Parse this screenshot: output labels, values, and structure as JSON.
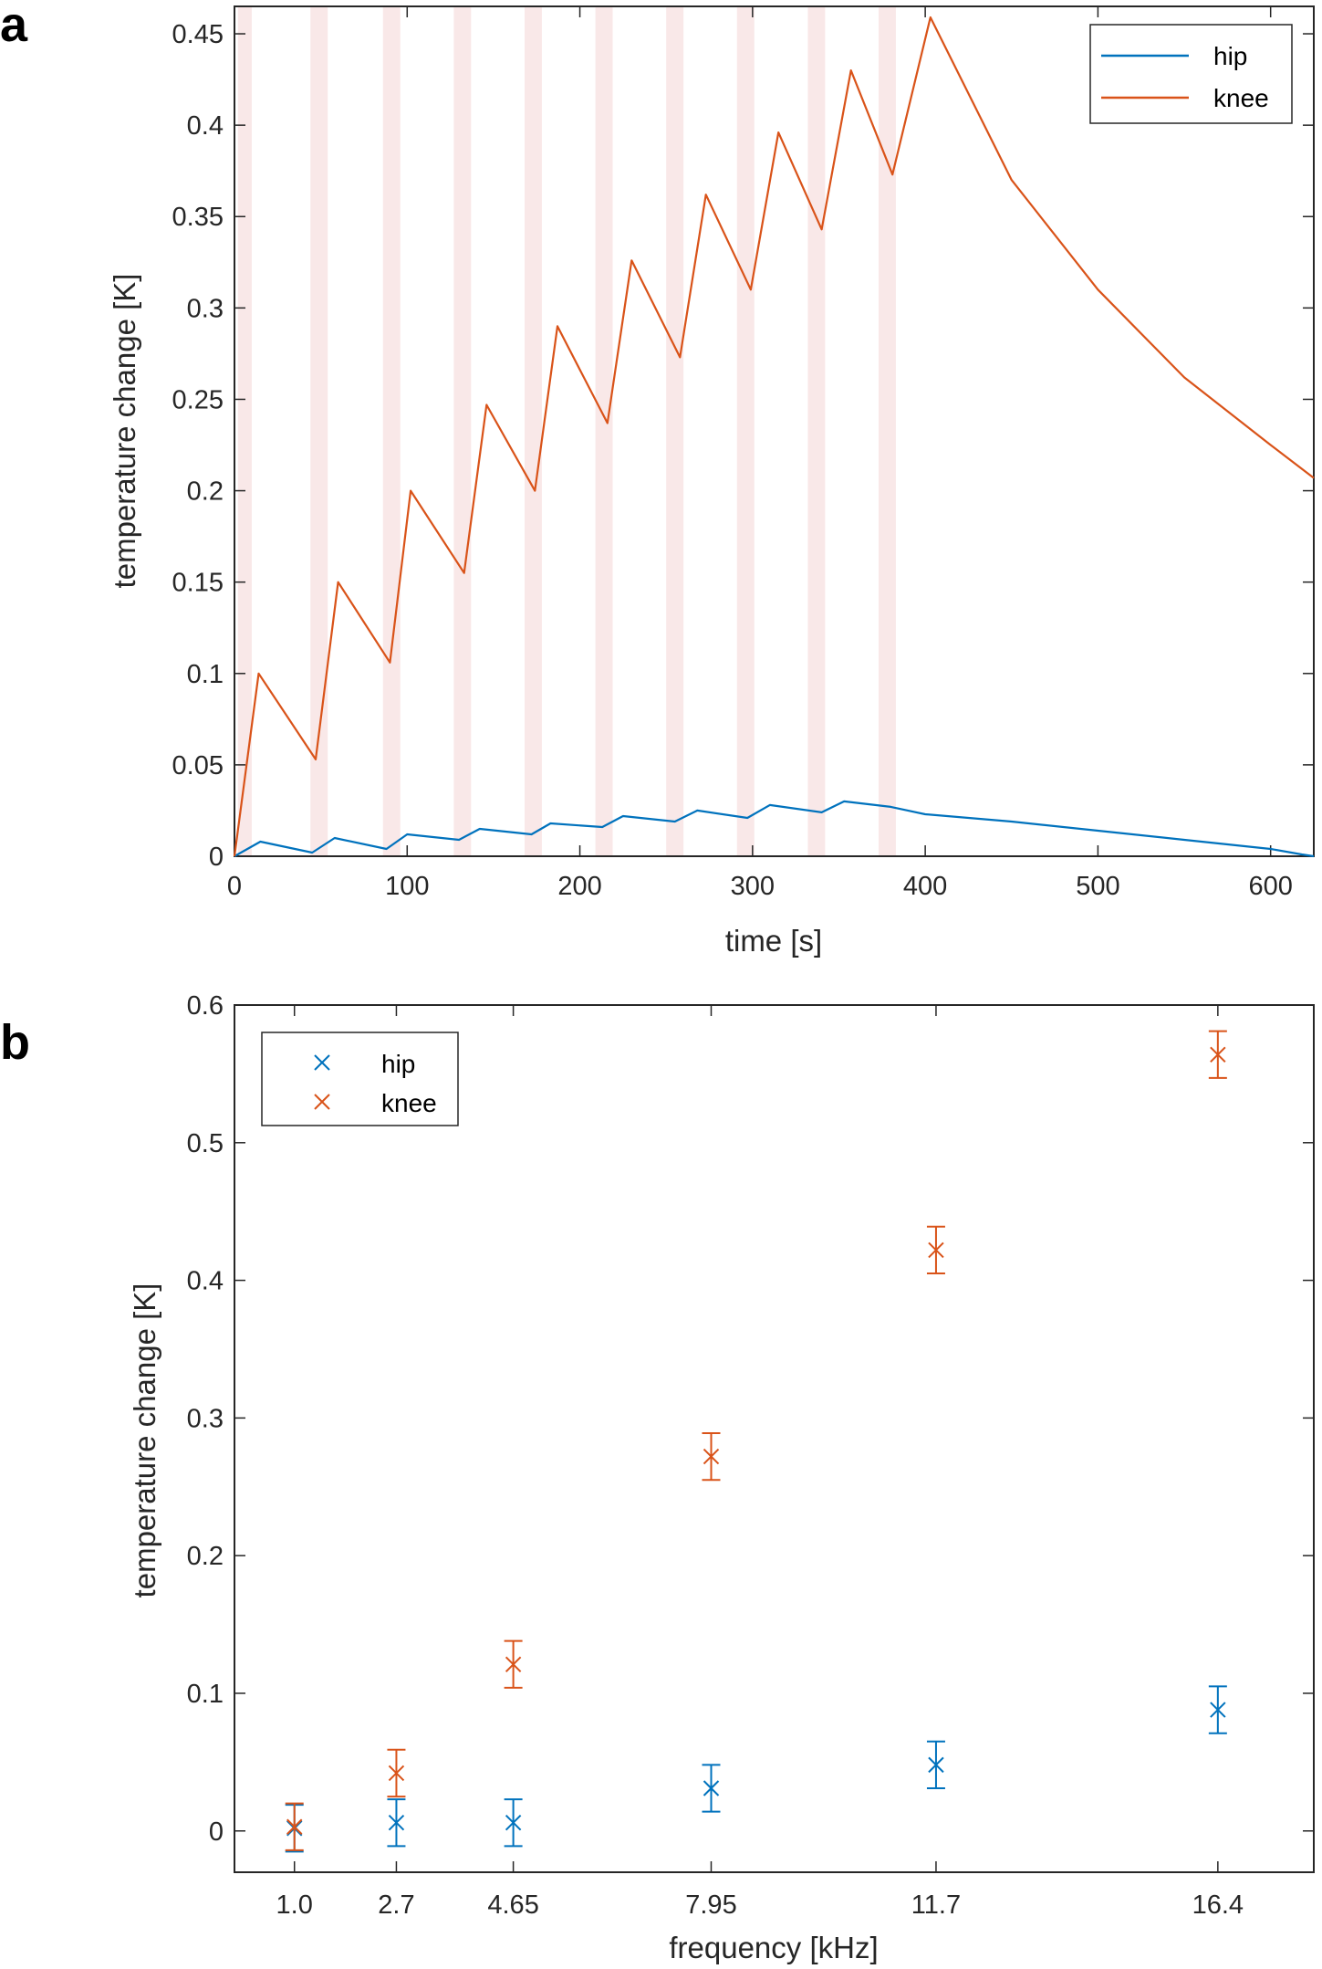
{
  "colors": {
    "hip": "#0072BD",
    "knee": "#D95319",
    "band": "#f9e8e8",
    "axis": "#262626"
  },
  "chart_data": [
    {
      "panel": "a",
      "type": "line",
      "xlabel": "time [s]",
      "ylabel": "temperature change [K]",
      "xlim": [
        0,
        625
      ],
      "ylim": [
        0,
        0.465
      ],
      "xticks": [
        0,
        100,
        200,
        300,
        400,
        500,
        600
      ],
      "yticks": [
        0,
        0.05,
        0.1,
        0.15,
        0.2,
        0.25,
        0.3,
        0.35,
        0.4,
        0.45
      ],
      "ytick_labels": [
        "0",
        "0.05",
        "0.1",
        "0.15",
        "0.2",
        "0.25",
        "0.3",
        "0.35",
        "0.4",
        "0.45"
      ],
      "grid": false,
      "legend": "top-right",
      "stimulus_intervals": [
        [
          2,
          10
        ],
        [
          44,
          54
        ],
        [
          86,
          96
        ],
        [
          127,
          137
        ],
        [
          168,
          178
        ],
        [
          209,
          219
        ],
        [
          250,
          260
        ],
        [
          291,
          301
        ],
        [
          332,
          342
        ],
        [
          373,
          383
        ]
      ],
      "series": [
        {
          "name": "hip",
          "color": "#0072BD",
          "x": [
            0,
            15,
            45,
            58,
            88,
            100,
            130,
            142,
            172,
            183,
            213,
            225,
            255,
            268,
            297,
            310,
            340,
            353,
            380,
            400,
            450,
            500,
            550,
            600,
            618,
            625
          ],
          "y": [
            0.0,
            0.008,
            0.002,
            0.01,
            0.004,
            0.012,
            0.009,
            0.015,
            0.012,
            0.018,
            0.016,
            0.022,
            0.019,
            0.025,
            0.021,
            0.028,
            0.024,
            0.03,
            0.027,
            0.023,
            0.019,
            0.014,
            0.009,
            0.004,
            0.001,
            0.0
          ]
        },
        {
          "name": "knee",
          "color": "#D95319",
          "x": [
            0,
            14,
            47,
            60,
            90,
            102,
            133,
            146,
            174,
            187,
            216,
            230,
            258,
            273,
            299,
            315,
            340,
            357,
            381,
            403,
            450,
            500,
            550,
            600,
            625
          ],
          "y": [
            0.0,
            0.1,
            0.053,
            0.15,
            0.106,
            0.2,
            0.155,
            0.247,
            0.2,
            0.29,
            0.237,
            0.326,
            0.273,
            0.362,
            0.31,
            0.396,
            0.343,
            0.43,
            0.373,
            0.459,
            0.37,
            0.31,
            0.262,
            0.225,
            0.207
          ]
        }
      ]
    },
    {
      "panel": "b",
      "type": "scatter",
      "xlabel": "frequency [kHz]",
      "ylabel": "temperature change [K]",
      "xlim": [
        0,
        18
      ],
      "ylim": [
        -0.03,
        0.6
      ],
      "categories": [
        "1.0",
        "2.7",
        "4.65",
        "7.95",
        "11.7",
        "16.4"
      ],
      "x": [
        1.0,
        2.7,
        4.65,
        7.95,
        11.7,
        16.4
      ],
      "yticks": [
        0,
        0.1,
        0.2,
        0.3,
        0.4,
        0.5,
        0.6
      ],
      "ytick_labels": [
        "0",
        "0.1",
        "0.2",
        "0.3",
        "0.4",
        "0.5",
        "0.6"
      ],
      "grid": false,
      "legend": "top-left",
      "series": [
        {
          "name": "hip",
          "color": "#0072BD",
          "values": [
            0.002,
            0.006,
            0.006,
            0.031,
            0.048,
            0.088
          ],
          "error": [
            0.017,
            0.017,
            0.017,
            0.017,
            0.017,
            0.017
          ]
        },
        {
          "name": "knee",
          "color": "#D95319",
          "values": [
            0.003,
            0.042,
            0.121,
            0.272,
            0.422,
            0.564
          ],
          "error": [
            0.017,
            0.017,
            0.017,
            0.017,
            0.017,
            0.017
          ]
        }
      ]
    }
  ]
}
